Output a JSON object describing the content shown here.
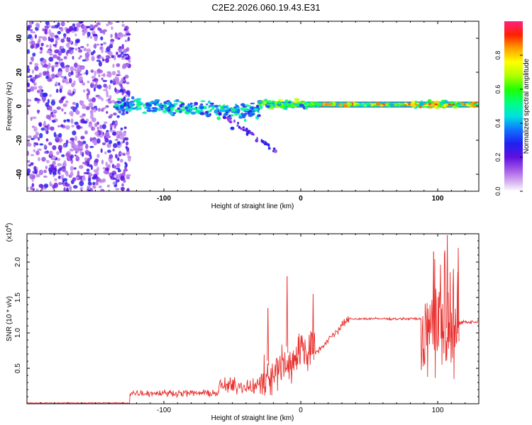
{
  "title": "C2E2.2026.060.19.43.E31",
  "chart_data": [
    {
      "type": "heatmap",
      "name": "spectrogram",
      "xlabel": "Height of straight line (km)",
      "ylabel": "Frequency (Hz)",
      "xlim": [
        -200,
        130
      ],
      "ylim": [
        -50,
        50
      ],
      "xticks": [
        -100,
        0,
        100
      ],
      "xtick_labels": [
        "-100",
        "0",
        "100"
      ],
      "yticks": [
        -40,
        -20,
        0,
        20,
        40
      ],
      "ytick_labels": [
        "-40",
        "-20",
        "0",
        "20",
        "40"
      ],
      "colorbar": {
        "label": "Normalized spectral amplitude",
        "range": [
          0,
          1
        ],
        "ticks": [
          0.0,
          0.2,
          0.4,
          0.6,
          0.8
        ],
        "tick_labels": [
          "0.0",
          "0.2",
          "0.4",
          "0.6",
          "0.8"
        ]
      },
      "features": {
        "noise_region_x": [
          -200,
          -125
        ],
        "signal_band_x": [
          -135,
          130
        ],
        "signal_center_freq": 1,
        "strong_line_start_x": 15,
        "trail_end": [
          -18,
          -26
        ]
      }
    },
    {
      "type": "line",
      "name": "snr",
      "xlabel": "Height of straight line (km)",
      "ylabel": "SNR (10 * v/v)",
      "multiplier_label": "(x10",
      "multiplier_exp": "4",
      "multiplier_close": ")",
      "xlim": [
        -200,
        130
      ],
      "ylim": [
        0,
        24000
      ],
      "xticks": [
        -100,
        0,
        100
      ],
      "xtick_labels": [
        "-100",
        "0",
        "100"
      ],
      "yticks": [
        5000,
        10000,
        15000,
        20000
      ],
      "ytick_labels": [
        "0.5",
        "1.0",
        "1.5",
        "2.0"
      ],
      "color": "#e8302e",
      "segments": [
        {
          "x_range": [
            -200,
            -125
          ],
          "mean": 100,
          "noise": 120
        },
        {
          "x_range": [
            -125,
            -60
          ],
          "mean": 1500,
          "noise": 700
        },
        {
          "x_range": [
            -60,
            -30
          ],
          "mean": 2500,
          "noise": 1600
        },
        {
          "x_range": [
            -30,
            10
          ],
          "mean": 7000,
          "noise": 4500
        },
        {
          "x_range": [
            10,
            35
          ],
          "mean": 10500,
          "noise": 1000
        },
        {
          "x_range": [
            35,
            88
          ],
          "mean": 12000,
          "noise": 250
        },
        {
          "x_range": [
            88,
            115
          ],
          "mean": 11000,
          "noise": 7500
        },
        {
          "x_range": [
            115,
            130
          ],
          "mean": 11500,
          "noise": 400
        }
      ],
      "peaks": [
        {
          "x": -24,
          "y": 13500
        },
        {
          "x": -10,
          "y": 18000
        },
        {
          "x": 9,
          "y": 15500
        },
        {
          "x": 97,
          "y": 21500
        },
        {
          "x": 107,
          "y": 23800
        },
        {
          "x": 115,
          "y": 22000
        }
      ]
    }
  ]
}
